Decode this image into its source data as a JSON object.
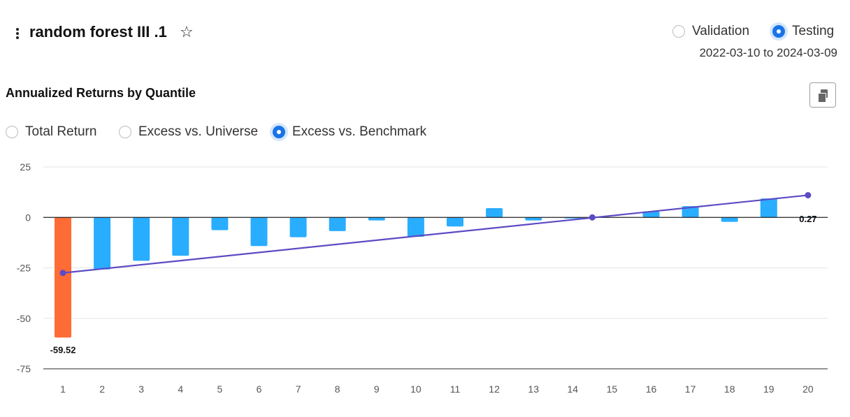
{
  "header": {
    "title": "random forest III .1",
    "star_glyph": "☆",
    "period_options": [
      {
        "label": "Validation",
        "checked": false
      },
      {
        "label": "Testing",
        "checked": true
      }
    ],
    "date_range": "2022-03-10 to 2024-03-09"
  },
  "chart_section": {
    "title": "Annualized Returns by Quantile",
    "return_options": [
      {
        "label": "Total Return",
        "checked": false
      },
      {
        "label": "Excess vs. Universe",
        "checked": false
      },
      {
        "label": "Excess vs. Benchmark",
        "checked": true
      }
    ]
  },
  "chart_data": {
    "type": "bar",
    "title": "Annualized Returns by Quantile",
    "xlabel": "",
    "ylabel": "",
    "categories": [
      "1",
      "2",
      "3",
      "4",
      "5",
      "6",
      "7",
      "8",
      "9",
      "10",
      "11",
      "12",
      "13",
      "14",
      "15",
      "16",
      "17",
      "18",
      "19",
      "20"
    ],
    "values": [
      -59.52,
      -25.8,
      -21.5,
      -19.0,
      -6.3,
      -14.2,
      -9.8,
      -6.8,
      -1.5,
      -9.6,
      -4.5,
      4.6,
      -1.5,
      -0.5,
      0.0,
      3.0,
      5.6,
      -2.2,
      9.4,
      0.27
    ],
    "value_labels": [
      {
        "index": 0,
        "text": "-59.52"
      },
      {
        "index": 19,
        "text": "0.27"
      }
    ],
    "ylim": [
      -75,
      25
    ],
    "yticks": [
      25,
      0,
      -25,
      -50,
      -75
    ],
    "trendline": {
      "start": {
        "x": "1",
        "y": -27.5
      },
      "end": {
        "x": "20",
        "y": 11.0
      },
      "midpoint": {
        "x": 14.5,
        "y": 0.0
      }
    },
    "colors": {
      "highlight": "#ff6b35",
      "bar": "#29adff",
      "trendline": "#5b4bc4",
      "grid": "#e6e6e6",
      "axis": "#222222"
    },
    "grid": true,
    "legend": "none"
  }
}
